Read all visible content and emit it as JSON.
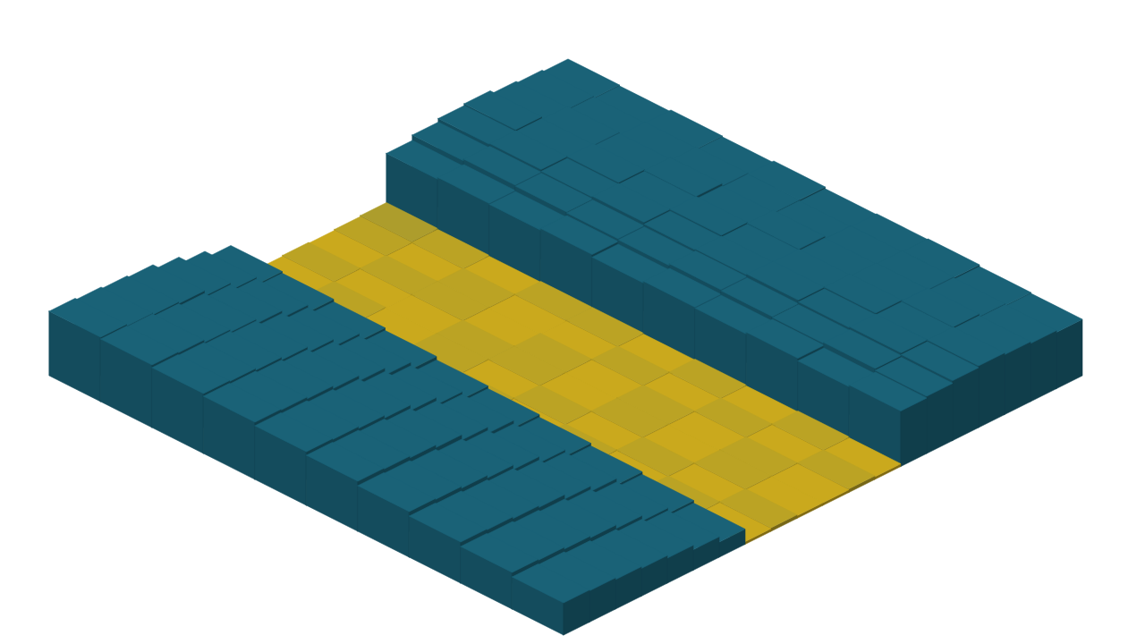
{
  "chart_data": {
    "type": "surface3d",
    "values": [
      [
        72,
        70,
        68,
        66,
        60,
        52,
        44,
        4,
        3,
        4,
        3,
        4,
        5,
        60,
        66,
        70,
        72,
        68,
        66,
        64
      ],
      [
        70,
        69,
        66,
        63,
        58,
        50,
        42,
        3,
        4,
        3,
        4,
        3,
        4,
        62,
        68,
        71,
        70,
        69,
        65,
        63
      ],
      [
        67,
        66,
        64,
        61,
        55,
        47,
        39,
        4,
        3,
        3,
        4,
        4,
        3,
        61,
        67,
        69,
        71,
        68,
        66,
        65
      ],
      [
        64,
        63,
        61,
        58,
        52,
        44,
        36,
        3,
        4,
        4,
        3,
        3,
        4,
        63,
        66,
        70,
        69,
        70,
        67,
        64
      ],
      [
        60,
        59,
        57,
        54,
        48,
        40,
        32,
        4,
        3,
        4,
        4,
        3,
        4,
        60,
        65,
        68,
        70,
        67,
        66,
        66
      ],
      [
        56,
        55,
        53,
        50,
        44,
        37,
        29,
        3,
        4,
        3,
        3,
        4,
        3,
        62,
        67,
        69,
        68,
        69,
        65,
        64
      ],
      [
        51,
        50,
        48,
        45,
        40,
        33,
        26,
        4,
        3,
        4,
        4,
        3,
        4,
        61,
        66,
        70,
        69,
        67,
        66,
        65
      ],
      [
        46,
        45,
        43,
        41,
        36,
        30,
        23,
        3,
        4,
        3,
        3,
        4,
        3,
        63,
        65,
        68,
        70,
        68,
        67,
        66
      ],
      [
        41,
        40,
        38,
        36,
        32,
        26,
        20,
        4,
        3,
        4,
        4,
        3,
        4,
        60,
        66,
        69,
        68,
        69,
        66,
        64
      ],
      [
        36,
        35,
        33,
        31,
        28,
        23,
        17,
        3,
        4,
        3,
        3,
        4,
        3,
        62,
        64,
        67,
        69,
        67,
        65,
        63
      ]
    ],
    "zlim": [
      0,
      100
    ],
    "tick_labels": false,
    "grid": false
  }
}
